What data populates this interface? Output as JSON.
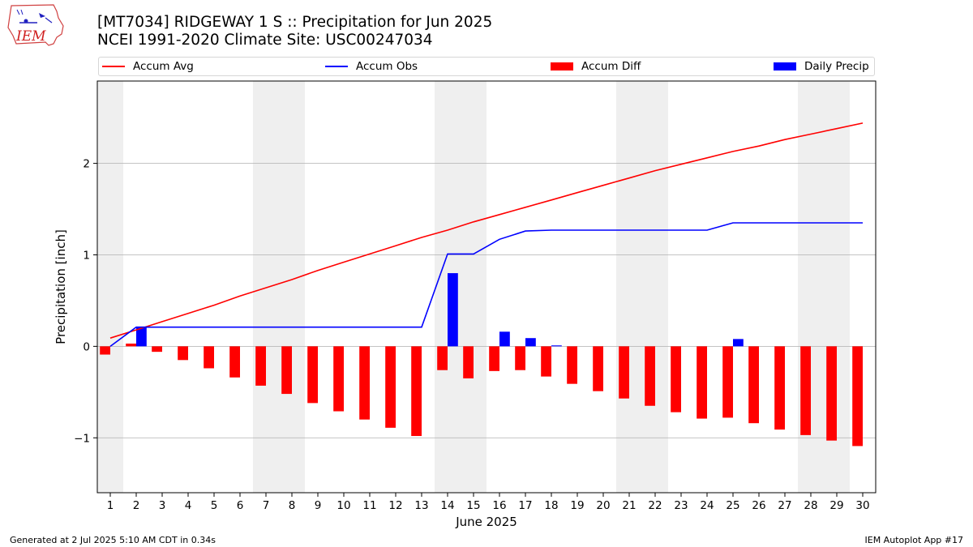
{
  "header": {
    "title": "[MT7034] RIDGEWAY 1 S :: Precipitation for Jun 2025",
    "subtitle": "NCEI 1991-2020 Climate Site: USC00247034",
    "logo_text": "IEM"
  },
  "legend": {
    "items": [
      {
        "label": "Accum Avg",
        "color": "#ff0000",
        "kind": "line"
      },
      {
        "label": "Accum Obs",
        "color": "#0000ff",
        "kind": "line"
      },
      {
        "label": "Accum Diff",
        "color": "#ff0000",
        "kind": "bar"
      },
      {
        "label": "Daily Precip",
        "color": "#0000ff",
        "kind": "bar"
      }
    ]
  },
  "footer": {
    "generated": "Generated at 2 Jul 2025 5:10 AM CDT in 0.34s",
    "app": "IEM Autoplot App #17"
  },
  "chart_data": {
    "type": "bar",
    "title": "[MT7034] RIDGEWAY 1 S :: Precipitation for Jun 2025",
    "xlabel": "June 2025",
    "ylabel": "Precipitation [inch]",
    "x": [
      1,
      2,
      3,
      4,
      5,
      6,
      7,
      8,
      9,
      10,
      11,
      12,
      13,
      14,
      15,
      16,
      17,
      18,
      19,
      20,
      21,
      22,
      23,
      24,
      25,
      26,
      27,
      28,
      29,
      30
    ],
    "xlim": [
      0.5,
      30.5
    ],
    "ylim": [
      -1.6,
      2.9
    ],
    "yticks": [
      -1,
      0,
      1,
      2
    ],
    "grid": "horizontal",
    "legend_position": "top",
    "weekend_shading": [
      [
        0.5,
        1.5
      ],
      [
        6.5,
        8.5
      ],
      [
        13.5,
        15.5
      ],
      [
        20.5,
        22.5
      ],
      [
        27.5,
        29.5
      ]
    ],
    "series": [
      {
        "name": "Accum Avg",
        "kind": "line",
        "color": "#ff0000",
        "values": [
          0.09,
          0.18,
          0.27,
          0.36,
          0.45,
          0.55,
          0.64,
          0.73,
          0.83,
          0.92,
          1.01,
          1.1,
          1.19,
          1.27,
          1.36,
          1.44,
          1.52,
          1.6,
          1.68,
          1.76,
          1.84,
          1.92,
          1.99,
          2.06,
          2.13,
          2.19,
          2.26,
          2.32,
          2.38,
          2.44
        ]
      },
      {
        "name": "Accum Obs",
        "kind": "line",
        "color": "#0000ff",
        "values": [
          0.0,
          0.21,
          0.21,
          0.21,
          0.21,
          0.21,
          0.21,
          0.21,
          0.21,
          0.21,
          0.21,
          0.21,
          0.21,
          1.01,
          1.01,
          1.17,
          1.26,
          1.27,
          1.27,
          1.27,
          1.27,
          1.27,
          1.27,
          1.27,
          1.35,
          1.35,
          1.35,
          1.35,
          1.35,
          1.35
        ]
      },
      {
        "name": "Accum Diff",
        "kind": "bar",
        "color": "#ff0000",
        "values": [
          -0.09,
          0.03,
          -0.06,
          -0.15,
          -0.24,
          -0.34,
          -0.43,
          -0.52,
          -0.62,
          -0.71,
          -0.8,
          -0.89,
          -0.98,
          -0.26,
          -0.35,
          -0.27,
          -0.26,
          -0.33,
          -0.41,
          -0.49,
          -0.57,
          -0.65,
          -0.72,
          -0.79,
          -0.78,
          -0.84,
          -0.91,
          -0.97,
          -1.03,
          -1.09
        ]
      },
      {
        "name": "Daily Precip",
        "kind": "bar",
        "color": "#0000ff",
        "values": [
          0.0,
          0.21,
          0.0,
          0.0,
          0.0,
          0.0,
          0.0,
          0.0,
          0.0,
          0.0,
          0.0,
          0.0,
          0.0,
          0.8,
          0.0,
          0.16,
          0.09,
          0.01,
          0.0,
          0.0,
          0.0,
          0.0,
          0.0,
          0.0,
          0.08,
          0.0,
          0.0,
          0.0,
          0.0,
          0.0
        ]
      }
    ]
  }
}
